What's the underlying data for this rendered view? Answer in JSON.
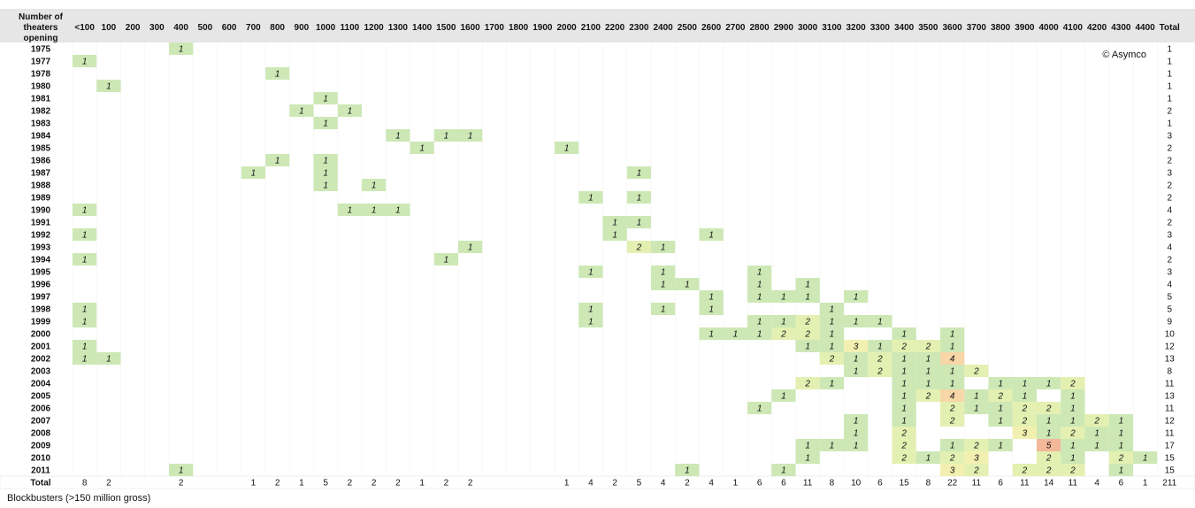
{
  "chart_data": {
    "type": "heatmap",
    "title": "",
    "corner_label": [
      "Number of",
      "theaters",
      "opening"
    ],
    "copyright": "© Asymco",
    "caption": "Blockbusters (>150 million gross)",
    "columns": [
      "<100",
      "100",
      "200",
      "300",
      "400",
      "500",
      "600",
      "700",
      "800",
      "900",
      "1000",
      "1100",
      "1200",
      "1300",
      "1400",
      "1500",
      "1600",
      "1700",
      "1800",
      "1900",
      "2000",
      "2100",
      "2200",
      "2300",
      "2400",
      "2500",
      "2600",
      "2700",
      "2800",
      "2900",
      "3000",
      "3100",
      "3200",
      "3300",
      "3400",
      "3500",
      "3600",
      "3700",
      "3800",
      "3900",
      "4000",
      "4100",
      "4200",
      "4300",
      "4400"
    ],
    "total_label": "Total",
    "row_total_label": "Total",
    "rows": [
      {
        "year": "1975",
        "cells": [
          [
            "400",
            1
          ]
        ],
        "total": 1
      },
      {
        "year": "1977",
        "cells": [
          [
            "<100",
            1
          ]
        ],
        "total": 1
      },
      {
        "year": "1978",
        "cells": [
          [
            "800",
            1
          ]
        ],
        "total": 1
      },
      {
        "year": "1980",
        "cells": [
          [
            "100",
            1
          ]
        ],
        "total": 1
      },
      {
        "year": "1981",
        "cells": [
          [
            "1000",
            1
          ]
        ],
        "total": 1
      },
      {
        "year": "1982",
        "cells": [
          [
            "900",
            1
          ],
          [
            "1100",
            1
          ]
        ],
        "total": 2
      },
      {
        "year": "1983",
        "cells": [
          [
            "1000",
            1
          ]
        ],
        "total": 1
      },
      {
        "year": "1984",
        "cells": [
          [
            "1300",
            1
          ],
          [
            "1500",
            1
          ],
          [
            "1600",
            1
          ]
        ],
        "total": 3
      },
      {
        "year": "1985",
        "cells": [
          [
            "1400",
            1
          ],
          [
            "2000",
            1
          ]
        ],
        "total": 2
      },
      {
        "year": "1986",
        "cells": [
          [
            "800",
            1
          ],
          [
            "1000",
            1
          ]
        ],
        "total": 2
      },
      {
        "year": "1987",
        "cells": [
          [
            "700",
            1
          ],
          [
            "1000",
            1
          ],
          [
            "2300",
            1
          ]
        ],
        "total": 3
      },
      {
        "year": "1988",
        "cells": [
          [
            "1000",
            1
          ],
          [
            "1200",
            1
          ]
        ],
        "total": 2
      },
      {
        "year": "1989",
        "cells": [
          [
            "2100",
            1
          ],
          [
            "2300",
            1
          ]
        ],
        "total": 2
      },
      {
        "year": "1990",
        "cells": [
          [
            "<100",
            1
          ],
          [
            "1100",
            1
          ],
          [
            "1200",
            1
          ],
          [
            "1300",
            1
          ]
        ],
        "total": 4
      },
      {
        "year": "1991",
        "cells": [
          [
            "2200",
            1
          ],
          [
            "2300",
            1
          ]
        ],
        "total": 2
      },
      {
        "year": "1992",
        "cells": [
          [
            "<100",
            1
          ],
          [
            "2200",
            1
          ],
          [
            "2600",
            1
          ]
        ],
        "total": 3
      },
      {
        "year": "1993",
        "cells": [
          [
            "1600",
            1
          ],
          [
            "2300",
            2
          ],
          [
            "2400",
            1
          ]
        ],
        "total": 4
      },
      {
        "year": "1994",
        "cells": [
          [
            "<100",
            1
          ],
          [
            "1500",
            1
          ]
        ],
        "total": 2
      },
      {
        "year": "1995",
        "cells": [
          [
            "2100",
            1
          ],
          [
            "2400",
            1
          ],
          [
            "2800",
            1
          ]
        ],
        "total": 3
      },
      {
        "year": "1996",
        "cells": [
          [
            "2400",
            1
          ],
          [
            "2500",
            1
          ],
          [
            "2800",
            1
          ],
          [
            "3000",
            1
          ]
        ],
        "total": 4
      },
      {
        "year": "1997",
        "cells": [
          [
            "2600",
            1
          ],
          [
            "2800",
            1
          ],
          [
            "2900",
            1
          ],
          [
            "3000",
            1
          ],
          [
            "3200",
            1
          ]
        ],
        "total": 5
      },
      {
        "year": "1998",
        "cells": [
          [
            "<100",
            1
          ],
          [
            "2100",
            1
          ],
          [
            "2400",
            1
          ],
          [
            "2600",
            1
          ],
          [
            "3100",
            1
          ]
        ],
        "total": 5
      },
      {
        "year": "1999",
        "cells": [
          [
            "<100",
            1
          ],
          [
            "2100",
            1
          ],
          [
            "2800",
            1
          ],
          [
            "2900",
            1
          ],
          [
            "3000",
            2
          ],
          [
            "3100",
            1
          ],
          [
            "3200",
            1
          ],
          [
            "3300",
            1
          ]
        ],
        "total": 9
      },
      {
        "year": "2000",
        "cells": [
          [
            "2600",
            1
          ],
          [
            "2700",
            1
          ],
          [
            "2800",
            1
          ],
          [
            "2900",
            2
          ],
          [
            "3000",
            2
          ],
          [
            "3100",
            1
          ],
          [
            "3400",
            1
          ],
          [
            "3600",
            1
          ]
        ],
        "total": 10
      },
      {
        "year": "2001",
        "cells": [
          [
            "<100",
            1
          ],
          [
            "3000",
            1
          ],
          [
            "3100",
            1
          ],
          [
            "3200",
            3
          ],
          [
            "3300",
            1
          ],
          [
            "3400",
            2
          ],
          [
            "3500",
            2
          ],
          [
            "3600",
            1
          ]
        ],
        "total": 12
      },
      {
        "year": "2002",
        "cells": [
          [
            "<100",
            1
          ],
          [
            "100",
            1
          ],
          [
            "3100",
            2
          ],
          [
            "3200",
            1
          ],
          [
            "3300",
            2
          ],
          [
            "3400",
            1
          ],
          [
            "3500",
            1
          ],
          [
            "3600",
            4
          ]
        ],
        "total": 13
      },
      {
        "year": "2003",
        "cells": [
          [
            "3200",
            1
          ],
          [
            "3300",
            2
          ],
          [
            "3400",
            1
          ],
          [
            "3500",
            1
          ],
          [
            "3600",
            1
          ],
          [
            "3700",
            2
          ]
        ],
        "total": 8
      },
      {
        "year": "2004",
        "cells": [
          [
            "3000",
            2
          ],
          [
            "3100",
            1
          ],
          [
            "3400",
            1
          ],
          [
            "3500",
            1
          ],
          [
            "3600",
            1
          ],
          [
            "3800",
            1
          ],
          [
            "3900",
            1
          ],
          [
            "4000",
            1
          ],
          [
            "4100",
            2
          ]
        ],
        "total": 11
      },
      {
        "year": "2005",
        "cells": [
          [
            "2900",
            1
          ],
          [
            "3400",
            1
          ],
          [
            "3500",
            2
          ],
          [
            "3600",
            4
          ],
          [
            "3700",
            1
          ],
          [
            "3800",
            2
          ],
          [
            "3900",
            1
          ],
          [
            "4100",
            1
          ]
        ],
        "total": 13
      },
      {
        "year": "2006",
        "cells": [
          [
            "2800",
            1
          ],
          [
            "3400",
            1
          ],
          [
            "3600",
            2
          ],
          [
            "3700",
            1
          ],
          [
            "3800",
            1
          ],
          [
            "3900",
            2
          ],
          [
            "4000",
            2
          ],
          [
            "4100",
            1
          ]
        ],
        "total": 11
      },
      {
        "year": "2007",
        "cells": [
          [
            "3200",
            1
          ],
          [
            "3400",
            1
          ],
          [
            "3600",
            2
          ],
          [
            "3800",
            1
          ],
          [
            "3900",
            2
          ],
          [
            "4000",
            1
          ],
          [
            "4100",
            1
          ],
          [
            "4200",
            2
          ],
          [
            "4300",
            1
          ]
        ],
        "total": 12
      },
      {
        "year": "2008",
        "cells": [
          [
            "3200",
            1
          ],
          [
            "3400",
            2
          ],
          [
            "3900",
            3
          ],
          [
            "4000",
            1
          ],
          [
            "4100",
            2
          ],
          [
            "4200",
            1
          ],
          [
            "4300",
            1
          ]
        ],
        "total": 11
      },
      {
        "year": "2009",
        "cells": [
          [
            "3000",
            1
          ],
          [
            "3100",
            1
          ],
          [
            "3200",
            1
          ],
          [
            "3400",
            2
          ],
          [
            "3600",
            1
          ],
          [
            "3700",
            2
          ],
          [
            "3800",
            1
          ],
          [
            "4000",
            5
          ],
          [
            "4100",
            1
          ],
          [
            "4200",
            1
          ],
          [
            "4300",
            1
          ]
        ],
        "total": 17
      },
      {
        "year": "2010",
        "cells": [
          [
            "3000",
            1
          ],
          [
            "3400",
            2
          ],
          [
            "3500",
            1
          ],
          [
            "3600",
            2
          ],
          [
            "3700",
            3
          ],
          [
            "4000",
            2
          ],
          [
            "4100",
            1
          ],
          [
            "4300",
            2
          ],
          [
            "4400",
            1
          ]
        ],
        "total": 15
      },
      {
        "year": "2011",
        "cells": [
          [
            "400",
            1
          ],
          [
            "2500",
            1
          ],
          [
            "2900",
            1
          ],
          [
            "3600",
            3
          ],
          [
            "3700",
            2
          ],
          [
            "3900",
            2
          ],
          [
            "4000",
            2
          ],
          [
            "4100",
            2
          ],
          [
            "4300",
            1
          ]
        ],
        "total": 15
      }
    ],
    "column_totals": [
      "8",
      "2",
      "",
      "",
      "2",
      "",
      "",
      "1",
      "2",
      "1",
      "5",
      "2",
      "2",
      "2",
      "1",
      "2",
      "2",
      "",
      "",
      "",
      "1",
      "4",
      "2",
      "5",
      "4",
      "2",
      "4",
      "1",
      "6",
      "6",
      "11",
      "8",
      "10",
      "6",
      "15",
      "8",
      "22",
      "11",
      "6",
      "11",
      "14",
      "11",
      "4",
      "6",
      "1"
    ],
    "grand_total": "211",
    "colors": {
      "one": "#cde8b5",
      "two": "#e4f0b2",
      "three": "#f2f0b0",
      "four": "#f7d6a8",
      "five": "#f3b79a",
      "header_bg": "#e6e6e6",
      "grid": "#f0f0f0"
    },
    "grid": true,
    "legend": "none"
  }
}
